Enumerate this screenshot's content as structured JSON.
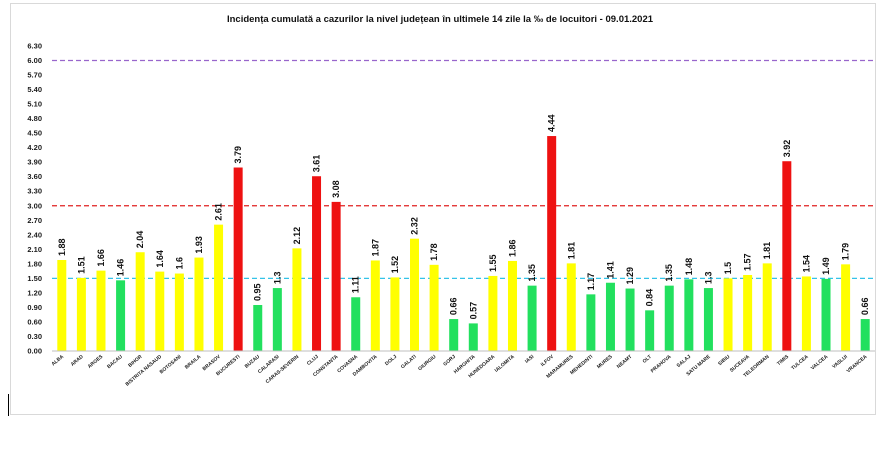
{
  "chart_data": {
    "type": "bar",
    "title": "Incidența cumulată a cazurilor la nivel județean în ultimele 14 zile la ‰ de locuitori - 09.01.2021",
    "xlabel": "",
    "ylabel": "",
    "ylim": [
      0,
      6.3
    ],
    "yticks": [
      "0.00",
      "0.30",
      "0.60",
      "0.90",
      "1.20",
      "1.50",
      "1.80",
      "2.10",
      "2.40",
      "2.70",
      "3.00",
      "3.30",
      "3.60",
      "3.90",
      "4.20",
      "4.50",
      "4.80",
      "5.10",
      "5.40",
      "5.70",
      "6.00",
      "6.30"
    ],
    "reference_lines": [
      {
        "value": 6.0,
        "color": "#9966cc",
        "style": "dashed"
      },
      {
        "value": 3.0,
        "color": "#e02020",
        "style": "dashed"
      },
      {
        "value": 1.5,
        "color": "#33c3e8",
        "style": "dashed"
      }
    ],
    "colors": {
      "yellow": "#ffff00",
      "green": "#22e05e",
      "red": "#ee1111"
    },
    "categories": [
      "ALBA",
      "ARAD",
      "ARGES",
      "BACAU",
      "BIHOR",
      "BISTRITA NASAUD",
      "BOTOSANI",
      "BRAILA",
      "BRASOV",
      "BUCURESTI",
      "BUZAU",
      "CALARASI",
      "CARAS-SEVERIN",
      "CLUJ",
      "CONSTANTA",
      "COVASNA",
      "DAMBOVITA",
      "DOLJ",
      "GALATI",
      "GIURGIU",
      "GORJ",
      "HARGHITA",
      "HUNEDOARA",
      "IALOMITA",
      "IASI",
      "ILFOV",
      "MARAMURES",
      "MEHEDINTI",
      "MURES",
      "NEAMT",
      "OLT",
      "PRAHOVA",
      "SALAJ",
      "SATU MARE",
      "SIBIU",
      "SUCEAVA",
      "TELEORMAN",
      "TIMIS",
      "TULCEA",
      "VALCEA",
      "VASLUI",
      "VRANCEA"
    ],
    "values": [
      1.88,
      1.51,
      1.66,
      1.46,
      2.04,
      1.64,
      1.6,
      1.93,
      2.61,
      3.79,
      0.95,
      1.3,
      2.12,
      3.61,
      3.08,
      1.11,
      1.87,
      1.52,
      2.32,
      1.78,
      0.66,
      0.57,
      1.55,
      1.86,
      1.35,
      4.44,
      1.81,
      1.17,
      1.41,
      1.29,
      0.84,
      1.35,
      1.48,
      1.3,
      1.5,
      1.57,
      1.81,
      3.92,
      1.54,
      1.49,
      1.79,
      0.66
    ],
    "value_labels": [
      "1.88",
      "1.51",
      "1.66",
      "1.46",
      "2.04",
      "1.64",
      "1.6",
      "1.93",
      "2.61",
      "3.79",
      "0.95",
      "1.3",
      "2.12",
      "3.61",
      "3.08",
      "1.11",
      "1.87",
      "1.52",
      "2.32",
      "1.78",
      "0.66",
      "0.57",
      "1.55",
      "1.86",
      "1.35",
      "4.44",
      "1.81",
      "1.17",
      "1.41",
      "1.29",
      "0.84",
      "1.35",
      "1.48",
      "1.3",
      "1.5",
      "1.57",
      "1.81",
      "3.92",
      "1.54",
      "1.49",
      "1.79",
      "0.66"
    ],
    "bar_colors": [
      "yellow",
      "yellow",
      "yellow",
      "green",
      "yellow",
      "yellow",
      "yellow",
      "yellow",
      "yellow",
      "red",
      "green",
      "green",
      "yellow",
      "red",
      "red",
      "green",
      "yellow",
      "yellow",
      "yellow",
      "yellow",
      "green",
      "green",
      "yellow",
      "yellow",
      "green",
      "red",
      "yellow",
      "green",
      "green",
      "green",
      "green",
      "green",
      "green",
      "green",
      "yellow",
      "yellow",
      "yellow",
      "red",
      "yellow",
      "green",
      "yellow",
      "green"
    ]
  }
}
